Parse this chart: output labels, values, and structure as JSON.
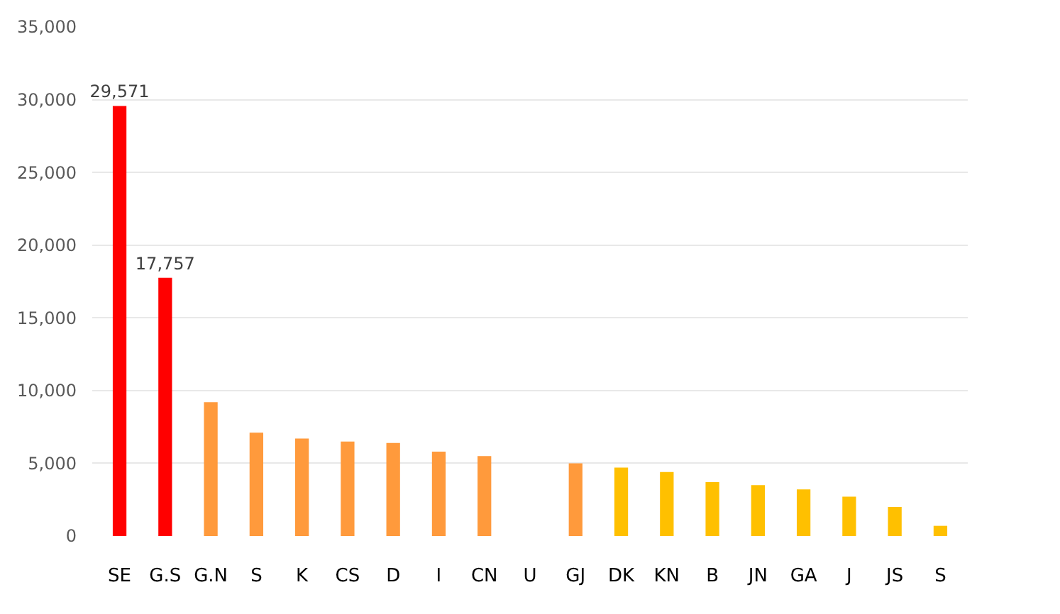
{
  "chart_data": {
    "type": "bar",
    "categories": [
      "SE",
      "G.S",
      "G.N",
      "S",
      "K",
      "CS",
      "D",
      "I",
      "CN",
      "U",
      "GJ",
      "DK",
      "KN",
      "B",
      "JN",
      "GA",
      "J",
      "JS",
      "S"
    ],
    "values": [
      29571,
      17757,
      9200,
      7100,
      6700,
      6500,
      6400,
      5800,
      5500,
      null,
      5000,
      4700,
      4400,
      3700,
      3500,
      3200,
      2700,
      2000,
      700
    ],
    "colors": [
      "#ff0000",
      "#ff0000",
      "#ff9a3c",
      "#ff9a3c",
      "#ff9a3c",
      "#ff9a3c",
      "#ff9a3c",
      "#ff9a3c",
      "#ff9a3c",
      "#ff9a3c",
      "#ff9a3c",
      "#ffc000",
      "#ffc000",
      "#ffc000",
      "#ffc000",
      "#ffc000",
      "#ffc000",
      "#ffc000",
      "#ffc000"
    ],
    "value_labels": [
      "29,571",
      "17,757",
      null,
      null,
      null,
      null,
      null,
      null,
      null,
      null,
      null,
      null,
      null,
      null,
      null,
      null,
      null,
      null,
      null
    ],
    "ylim": [
      0,
      35000
    ],
    "yticks": [
      {
        "value": 0,
        "label": "0"
      },
      {
        "value": 5000,
        "label": "5,000"
      },
      {
        "value": 10000,
        "label": "10,000"
      },
      {
        "value": 15000,
        "label": "15,000"
      },
      {
        "value": 20000,
        "label": "20,000"
      },
      {
        "value": 25000,
        "label": "25,000"
      },
      {
        "value": 30000,
        "label": "30,000"
      },
      {
        "value": 35000,
        "label": "35,000"
      }
    ],
    "grid": "y"
  }
}
